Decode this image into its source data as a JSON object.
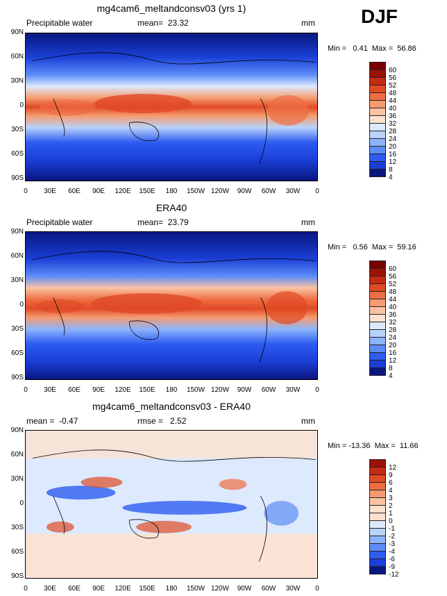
{
  "season": "DJF",
  "colors": {
    "positive_scale": [
      "#0a1680",
      "#1a3fd6",
      "#2d5cf0",
      "#5c8cf7",
      "#8cb4fa",
      "#b8d2fb",
      "#dde9fc",
      "#fde2cf",
      "#fbc3a3",
      "#f69b70",
      "#ee6d43",
      "#e04a25",
      "#c52b13",
      "#9a1306",
      "#7a0000"
    ],
    "diff_scale": [
      "#0a1680",
      "#1a3fd6",
      "#2d5cf0",
      "#5c8cf7",
      "#8cb4fa",
      "#b8d2fb",
      "#dde9fc",
      "#fde2cf",
      "#fbc3a3",
      "#f69b70",
      "#ee6d43",
      "#e04a25",
      "#c52b13",
      "#9a1306"
    ]
  },
  "panels": [
    {
      "title": "mg4cam6_meltandconsv03 (yrs 1)",
      "left_label": "Precipitable water",
      "mean_label": "mean=  23.32",
      "units": "mm",
      "min_max": "Min =   0.41  Max =  56.86",
      "colorbar_labels": [
        "60",
        "56",
        "52",
        "48",
        "44",
        "40",
        "36",
        "32",
        "28",
        "24",
        "20",
        "16",
        "12",
        "8",
        "4"
      ]
    },
    {
      "title": "ERA40",
      "left_label": "Precipitable water",
      "mean_label": "mean=  23.79",
      "units": "mm",
      "min_max": "Min =   0.56  Max =  59.16",
      "colorbar_labels": [
        "60",
        "56",
        "52",
        "48",
        "44",
        "40",
        "36",
        "32",
        "28",
        "24",
        "20",
        "16",
        "12",
        "8",
        "4"
      ]
    },
    {
      "title": "mg4cam6_meltandconsv03 - ERA40",
      "left_label": "mean =  -0.47",
      "mean_label": "rmse =   2.52",
      "units": "mm",
      "min_max": "Min = -13.36  Max =  11.66",
      "colorbar_labels": [
        "12",
        "9",
        "6",
        "4",
        "3",
        "2",
        "1",
        "0",
        "-1",
        "-2",
        "-3",
        "-4",
        "-6",
        "-9",
        "-12"
      ]
    }
  ],
  "lat_ticks": [
    "90N",
    "60N",
    "30N",
    "0",
    "30S",
    "60S",
    "90S"
  ],
  "lon_ticks": [
    "0",
    "30E",
    "60E",
    "90E",
    "120E",
    "150E",
    "180",
    "150W",
    "120W",
    "90W",
    "60W",
    "30W",
    "0"
  ]
}
